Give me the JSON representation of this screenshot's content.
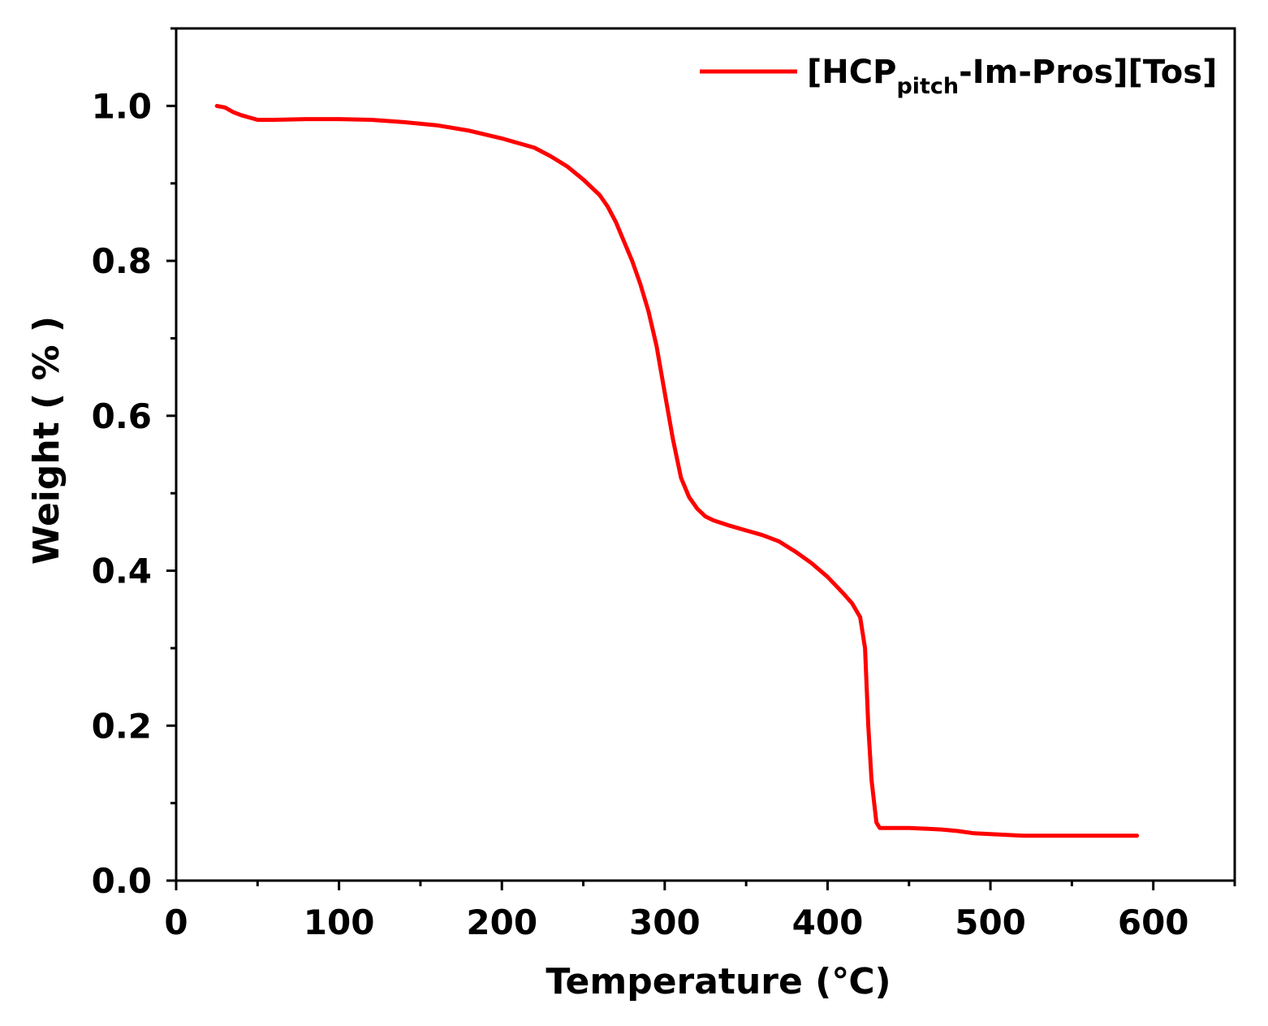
{
  "chart_data": {
    "type": "line",
    "title": "",
    "xlabel": "Temperature (℃)",
    "ylabel": "Weight ( % )",
    "xlim": [
      0,
      650
    ],
    "ylim": [
      0,
      1.1
    ],
    "xticks": [
      0,
      100,
      200,
      300,
      400,
      500,
      600
    ],
    "xtick_labels": [
      "0",
      "100",
      "200",
      "300",
      "400",
      "500",
      "600"
    ],
    "yticks": [
      0.0,
      0.2,
      0.4,
      0.6,
      0.8,
      1.0
    ],
    "ytick_labels": [
      "0.0",
      "0.2",
      "0.4",
      "0.6",
      "0.8",
      "1.0"
    ],
    "grid": false,
    "legend_position": "top-right",
    "colors": {
      "series": "#ff0000",
      "axis": "#000000"
    },
    "series": [
      {
        "name": "[HCPpitch-Im-Pros][Tos]",
        "legend_main": "[HCP",
        "legend_sub": "pitch",
        "legend_rest": "-Im-Pros][Tos]",
        "x": [
          25,
          30,
          35,
          40,
          50,
          60,
          80,
          100,
          120,
          140,
          160,
          180,
          200,
          220,
          230,
          240,
          250,
          260,
          265,
          270,
          275,
          280,
          285,
          290,
          295,
          300,
          305,
          310,
          315,
          320,
          325,
          330,
          340,
          350,
          360,
          370,
          380,
          390,
          400,
          410,
          415,
          420,
          423,
          425,
          427,
          430,
          432,
          435,
          440,
          450,
          460,
          470,
          480,
          490,
          500,
          510,
          520,
          530,
          540,
          550,
          560,
          570,
          580,
          590
        ],
        "y": [
          1.0,
          0.998,
          0.992,
          0.988,
          0.982,
          0.982,
          0.983,
          0.983,
          0.982,
          0.979,
          0.975,
          0.968,
          0.958,
          0.946,
          0.935,
          0.922,
          0.905,
          0.885,
          0.87,
          0.85,
          0.825,
          0.8,
          0.77,
          0.735,
          0.69,
          0.63,
          0.57,
          0.52,
          0.495,
          0.48,
          0.47,
          0.465,
          0.458,
          0.452,
          0.446,
          0.438,
          0.425,
          0.41,
          0.392,
          0.37,
          0.358,
          0.34,
          0.3,
          0.2,
          0.13,
          0.075,
          0.068,
          0.068,
          0.068,
          0.068,
          0.067,
          0.066,
          0.064,
          0.061,
          0.06,
          0.059,
          0.058,
          0.058,
          0.058,
          0.058,
          0.058,
          0.058,
          0.058,
          0.058
        ]
      }
    ]
  }
}
